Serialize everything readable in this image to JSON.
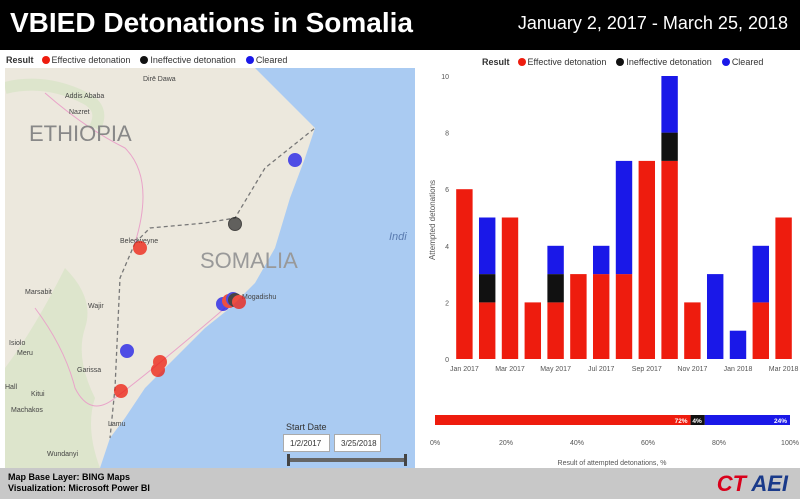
{
  "header": {
    "title": "VBIED Detonations in Somalia",
    "date_range": "January 2, 2017 - March 25, 2018"
  },
  "legend": {
    "title": "Result",
    "items": [
      {
        "label": "Effective detonation",
        "color": "#ee1c0e"
      },
      {
        "label": "Ineffective detonation",
        "color": "#111111"
      },
      {
        "label": "Cleared",
        "color": "#1a18e8"
      }
    ]
  },
  "map": {
    "country_labels": [
      "ETHIOPIA",
      "SOMALIA"
    ],
    "city_labels": [
      "Dirē Dawa",
      "Addis Ababa",
      "Nazret",
      "Beledweyne",
      "Mogadishu",
      "Marsabit",
      "Wajir",
      "Isiolo",
      "Meru",
      "Garissa",
      "Kitui",
      "Machakos",
      "Hall",
      "Lamu",
      "Wundanyi"
    ],
    "sea_label": "Indi",
    "markers": [
      {
        "name": "bosaso-area",
        "result": "Cleared"
      },
      {
        "name": "galkayo-area",
        "result": "Ineffective detonation"
      },
      {
        "name": "el-wak-area",
        "result": "Effective detonation"
      },
      {
        "name": "mogadishu-effective",
        "result": "Effective detonation"
      },
      {
        "name": "mogadishu-ineffective",
        "result": "Ineffective detonation"
      },
      {
        "name": "mogadishu-cleared",
        "result": "Cleared"
      },
      {
        "name": "mogadishu-effective-2",
        "result": "Effective detonation"
      },
      {
        "name": "lower-juba-cleared",
        "result": "Cleared"
      },
      {
        "name": "kismayo-effective",
        "result": "Effective detonation"
      },
      {
        "name": "kismayo-effective-2",
        "result": "Effective detonation"
      },
      {
        "name": "kenya-border-effective",
        "result": "Effective detonation"
      }
    ],
    "start_date_label": "Start Date",
    "start_date": "1/2/2017",
    "end_date": "3/25/2018"
  },
  "chart_data": [
    {
      "type": "bar",
      "stacked": true,
      "ylabel": "Attempted detonations",
      "ylim": [
        0,
        10
      ],
      "yticks": [
        0,
        2,
        4,
        6,
        8,
        10
      ],
      "categories": [
        "Jan 2017",
        "Feb 2017",
        "Mar 2017",
        "Apr 2017",
        "May 2017",
        "Jun 2017",
        "Jul 2017",
        "Aug 2017",
        "Sep 2017",
        "Oct 2017",
        "Nov 2017",
        "Dec 2017",
        "Jan 2018",
        "Feb 2018",
        "Mar 2018"
      ],
      "xtick_labels": [
        "Jan 2017",
        "",
        "Mar 2017",
        "",
        "May 2017",
        "",
        "Jul 2017",
        "",
        "Sep 2017",
        "",
        "Nov 2017",
        "",
        "Jan 2018",
        "",
        "Mar 2018"
      ],
      "series": [
        {
          "name": "Effective detonation",
          "color": "#ee1c0e",
          "values": [
            6,
            2,
            5,
            2,
            2,
            3,
            3,
            3,
            7,
            7,
            2,
            0,
            0,
            2,
            5
          ]
        },
        {
          "name": "Ineffective detonation",
          "color": "#111111",
          "values": [
            0,
            1,
            0,
            0,
            1,
            0,
            0,
            0,
            0,
            1,
            0,
            0,
            0,
            0,
            0
          ]
        },
        {
          "name": "Cleared",
          "color": "#1a18e8",
          "values": [
            0,
            2,
            0,
            0,
            1,
            0,
            1,
            4,
            0,
            2,
            0,
            3,
            1,
            2,
            0
          ]
        }
      ],
      "grid": false
    },
    {
      "type": "bar",
      "orientation": "horizontal",
      "stacked": true,
      "xlabel": "Result of attempted detonations, %",
      "xlim": [
        0,
        100
      ],
      "xtick_labels": [
        "0%",
        "20%",
        "40%",
        "60%",
        "80%",
        "100%"
      ],
      "series": [
        {
          "name": "Effective detonation",
          "color": "#ee1c0e",
          "value": 72,
          "label": "72%"
        },
        {
          "name": "Ineffective detonation",
          "color": "#111111",
          "value": 4,
          "label": "4%"
        },
        {
          "name": "Cleared",
          "color": "#1a18e8",
          "value": 24,
          "label": "24%"
        }
      ]
    }
  ],
  "footer": {
    "line1": "Map Base Layer: BING Maps",
    "line2": "Visualization: Microsoft Power BI",
    "logo_ct": "CT",
    "logo_aei": "AEI"
  }
}
